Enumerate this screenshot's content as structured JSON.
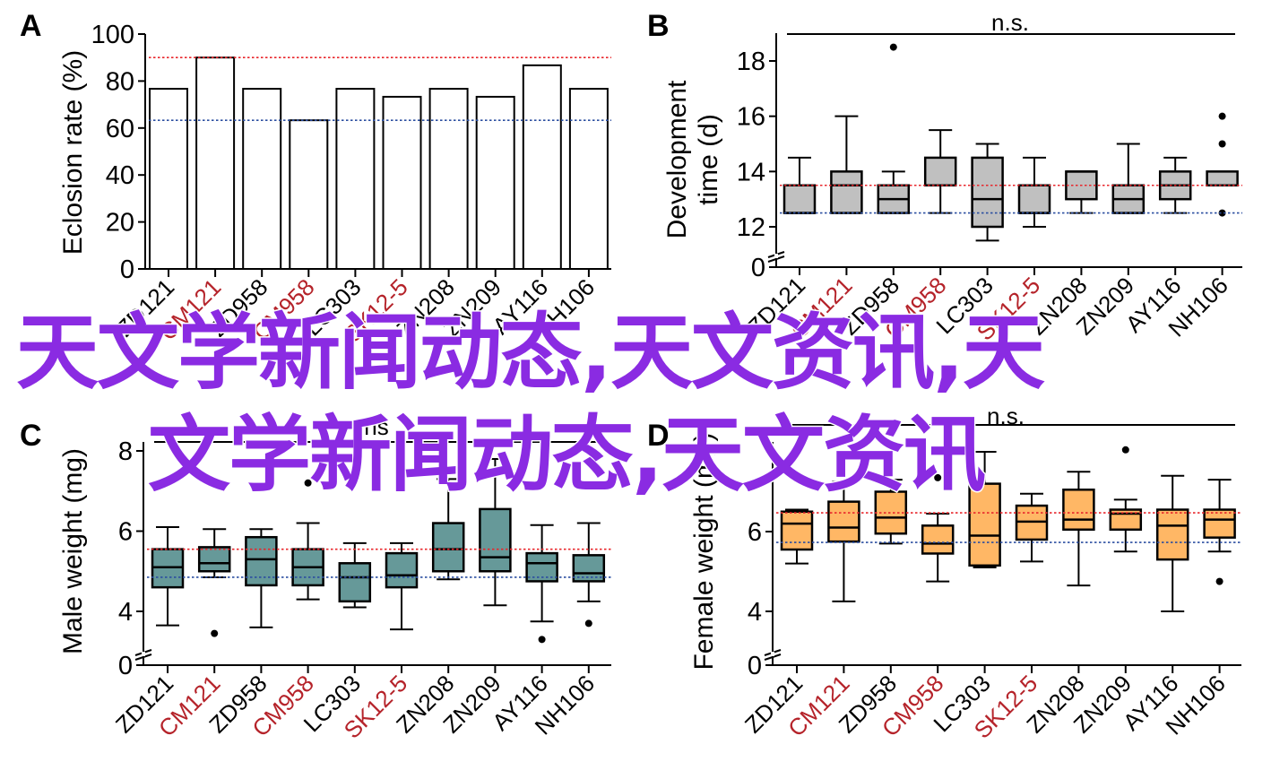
{
  "watermark": {
    "color": "#8a2be2",
    "line1": "天文学新闻动态,天文资讯,天",
    "line2": "文学新闻动态,天文资讯"
  },
  "colors": {
    "reference_red": "#e8262b",
    "reference_blue": "#2b4ea0",
    "label_highlight_red": "#b5232a",
    "label_default": "#000000",
    "box_gray": "#c0c0c0",
    "box_teal": "#669999",
    "box_orange": "#ffb765"
  },
  "chart_data": [
    {
      "panel": "A",
      "type": "bar",
      "ylabel": "Eclosion rate (%)",
      "ylim": [
        0,
        100
      ],
      "yticks": [
        "0",
        "20",
        "40",
        "60",
        "80",
        "100"
      ],
      "categories": [
        "ZD121",
        "CM121",
        "ZD958",
        "CM958",
        "LC303",
        "SK12-5",
        "ZN208",
        "ZN209",
        "AY116",
        "NH106"
      ],
      "highlighted_categories": [
        "CM121",
        "CM958",
        "SK12-5"
      ],
      "values": [
        76.7,
        90.0,
        76.7,
        63.3,
        76.7,
        73.3,
        76.7,
        73.3,
        86.7,
        76.7
      ],
      "reference_lines": [
        {
          "color": "red",
          "value": 90.0,
          "style": "dotted"
        },
        {
          "color": "blue",
          "value": 63.3,
          "style": "dotted"
        }
      ],
      "bar_fill": "#ffffff"
    },
    {
      "panel": "B",
      "type": "box",
      "ylabel_line1": "Development",
      "ylabel_line2": "time (d)",
      "axis_break": true,
      "ylim": [
        11,
        19
      ],
      "yticks": [
        "12",
        "14",
        "16",
        "18"
      ],
      "break_label": "0",
      "significance": "n.s.",
      "categories": [
        "ZD121",
        "CM121",
        "ZD958",
        "CM958",
        "LC303",
        "SK12-5",
        "ZN208",
        "ZN209",
        "AY116",
        "NH106"
      ],
      "highlighted_categories": [
        "CM121",
        "CM958",
        "SK12-5"
      ],
      "fill": "box_gray",
      "boxes": [
        {
          "min": 12.5,
          "q1": 12.5,
          "median": 12.5,
          "q3": 13.5,
          "max": 14.5,
          "outliers": []
        },
        {
          "min": 12.5,
          "q1": 12.5,
          "median": 13.5,
          "q3": 14.0,
          "max": 16.0,
          "outliers": []
        },
        {
          "min": 12.5,
          "q1": 12.5,
          "median": 13.0,
          "q3": 13.5,
          "max": 14.0,
          "outliers": [
            18.5
          ]
        },
        {
          "min": 12.5,
          "q1": 13.5,
          "median": 13.5,
          "q3": 14.5,
          "max": 15.5,
          "outliers": []
        },
        {
          "min": 11.5,
          "q1": 12.0,
          "median": 13.0,
          "q3": 14.5,
          "max": 15.0,
          "outliers": []
        },
        {
          "min": 12.0,
          "q1": 12.5,
          "median": 12.5,
          "q3": 13.5,
          "max": 14.5,
          "outliers": []
        },
        {
          "min": 12.5,
          "q1": 13.0,
          "median": 14.0,
          "q3": 14.0,
          "max": 14.0,
          "outliers": []
        },
        {
          "min": 12.5,
          "q1": 12.5,
          "median": 13.0,
          "q3": 13.5,
          "max": 15.0,
          "outliers": []
        },
        {
          "min": 12.5,
          "q1": 13.0,
          "median": 13.5,
          "q3": 14.0,
          "max": 14.5,
          "outliers": []
        },
        {
          "min": 13.5,
          "q1": 13.5,
          "median": 13.5,
          "q3": 14.0,
          "max": 14.0,
          "outliers": [
            16.0,
            15.0,
            12.5
          ]
        }
      ],
      "reference_lines": [
        {
          "color": "red",
          "value": 13.5,
          "style": "dotted"
        },
        {
          "color": "blue",
          "value": 12.5,
          "style": "dotted"
        }
      ]
    },
    {
      "panel": "C",
      "type": "box",
      "ylabel": "Male weight (mg)",
      "axis_break": true,
      "ylim": [
        3,
        8.5
      ],
      "yticks": [
        "4",
        "6",
        "8"
      ],
      "break_label": "0",
      "significance": "ns",
      "categories": [
        "ZD121",
        "CM121",
        "ZD958",
        "CM958",
        "LC303",
        "SK12-5",
        "ZN208",
        "ZN209",
        "AY116",
        "NH106"
      ],
      "highlighted_categories": [
        "CM121",
        "CM958",
        "SK12-5"
      ],
      "fill": "box_teal",
      "boxes": [
        {
          "min": 3.65,
          "q1": 4.6,
          "median": 5.1,
          "q3": 5.55,
          "max": 6.1,
          "outliers": []
        },
        {
          "min": 4.85,
          "q1": 5.0,
          "median": 5.2,
          "q3": 5.6,
          "max": 6.05,
          "outliers": [
            3.45
          ]
        },
        {
          "min": 3.6,
          "q1": 4.65,
          "median": 5.3,
          "q3": 5.85,
          "max": 6.05,
          "outliers": []
        },
        {
          "min": 4.3,
          "q1": 4.65,
          "median": 5.1,
          "q3": 5.55,
          "max": 6.2,
          "outliers": [
            7.2
          ]
        },
        {
          "min": 4.1,
          "q1": 4.25,
          "median": 4.85,
          "q3": 5.2,
          "max": 5.7,
          "outliers": []
        },
        {
          "min": 3.55,
          "q1": 4.6,
          "median": 4.9,
          "q3": 5.45,
          "max": 5.7,
          "outliers": []
        },
        {
          "min": 4.8,
          "q1": 5.0,
          "median": 5.55,
          "q3": 6.2,
          "max": 7.3,
          "outliers": []
        },
        {
          "min": 4.15,
          "q1": 5.0,
          "median": 5.35,
          "q3": 6.55,
          "max": 7.8,
          "outliers": []
        },
        {
          "min": 3.75,
          "q1": 4.75,
          "median": 5.2,
          "q3": 5.45,
          "max": 6.15,
          "outliers": [
            3.3
          ]
        },
        {
          "min": 4.25,
          "q1": 4.75,
          "median": 4.95,
          "q3": 5.4,
          "max": 6.2,
          "outliers": [
            3.7
          ]
        }
      ],
      "reference_lines": [
        {
          "color": "red",
          "value": 5.55,
          "style": "dotted"
        },
        {
          "color": "blue",
          "value": 4.85,
          "style": "dotted"
        }
      ]
    },
    {
      "panel": "D",
      "type": "box",
      "ylabel": "Female weight (mg)",
      "axis_break": true,
      "ylim": [
        3,
        8.5
      ],
      "yticks": [
        "4",
        "6"
      ],
      "break_label": "0",
      "significance": "n.s.",
      "categories": [
        "ZD121",
        "CM121",
        "ZD958",
        "CM958",
        "LC303",
        "SK12-5",
        "ZN208",
        "ZN209",
        "AY116",
        "NH106"
      ],
      "highlighted_categories": [
        "CM121",
        "CM958",
        "SK12-5"
      ],
      "fill": "box_orange",
      "boxes": [
        {
          "min": 5.2,
          "q1": 5.55,
          "median": 6.2,
          "q3": 6.5,
          "max": 6.55,
          "outliers": [
            8.0
          ]
        },
        {
          "min": 4.25,
          "q1": 5.75,
          "median": 6.1,
          "q3": 6.75,
          "max": 7.25,
          "outliers": []
        },
        {
          "min": 5.7,
          "q1": 5.95,
          "median": 6.35,
          "q3": 7.0,
          "max": 7.3,
          "outliers": []
        },
        {
          "min": 4.75,
          "q1": 5.45,
          "median": 5.7,
          "q3": 6.15,
          "max": 6.45,
          "outliers": [
            7.35
          ]
        },
        {
          "min": 5.1,
          "q1": 5.15,
          "median": 5.9,
          "q3": 7.2,
          "max": 8.0,
          "outliers": []
        },
        {
          "min": 5.25,
          "q1": 5.8,
          "median": 6.25,
          "q3": 6.65,
          "max": 6.95,
          "outliers": []
        },
        {
          "min": 4.65,
          "q1": 6.05,
          "median": 6.3,
          "q3": 7.05,
          "max": 7.5,
          "outliers": []
        },
        {
          "min": 5.5,
          "q1": 6.05,
          "median": 6.45,
          "q3": 6.55,
          "max": 6.8,
          "outliers": [
            8.05
          ]
        },
        {
          "min": 4.0,
          "q1": 5.3,
          "median": 6.15,
          "q3": 6.55,
          "max": 7.4,
          "outliers": []
        },
        {
          "min": 5.5,
          "q1": 5.85,
          "median": 6.3,
          "q3": 6.55,
          "max": 7.3,
          "outliers": [
            4.75
          ]
        }
      ],
      "reference_lines": [
        {
          "color": "red",
          "value": 6.47,
          "style": "dotted"
        },
        {
          "color": "blue",
          "value": 5.73,
          "style": "dotted"
        }
      ]
    }
  ]
}
